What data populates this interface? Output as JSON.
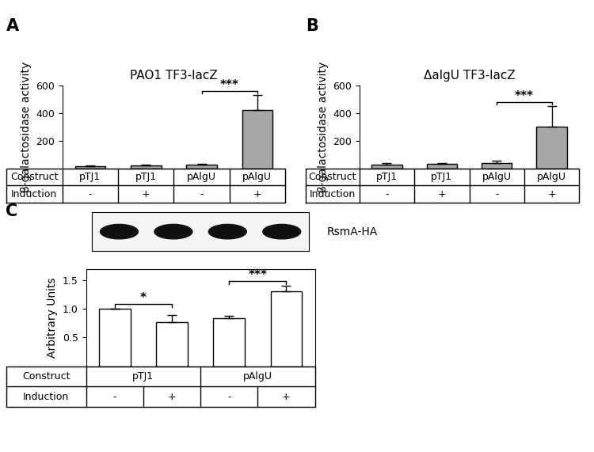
{
  "chart_data": [
    {
      "type": "bar",
      "panel": "A",
      "title": "PAO1 TF3-lacZ",
      "y_label": "β-galactosidase activity",
      "categories": [
        null,
        null,
        null,
        null
      ],
      "values": [
        18,
        25,
        28,
        425
      ],
      "errors": [
        2,
        3,
        6,
        105
      ],
      "color": "#a6a6a6",
      "ylim": [
        0,
        600
      ],
      "yticks": [
        200,
        400,
        600
      ],
      "annotations": [
        {
          "from": 2,
          "to": 3,
          "text": "***"
        }
      ],
      "table": [
        {
          "header": "Construct",
          "cells": [
            "pTJ1",
            "pTJ1",
            "pAlgU",
            "pAlgU"
          ]
        },
        {
          "header": "Induction",
          "cells": [
            "-",
            "+",
            "-",
            "+"
          ]
        }
      ]
    },
    {
      "type": "bar",
      "panel": "B",
      "title": "ΔalgU TF3-lacZ",
      "y_label": "β-galactosidase activity",
      "categories": [
        null,
        null,
        null,
        null
      ],
      "values": [
        30,
        32,
        42,
        300
      ],
      "errors": [
        8,
        8,
        15,
        150
      ],
      "color": "#a6a6a6",
      "ylim": [
        0,
        600
      ],
      "yticks": [
        200,
        400,
        600
      ],
      "annotations": [
        {
          "from": 2,
          "to": 3,
          "text": "***"
        }
      ],
      "table": [
        {
          "header": "Construct",
          "cells": [
            "pTJ1",
            "pTJ1",
            "pAlgU",
            "pAlgU"
          ]
        },
        {
          "header": "Induction",
          "cells": [
            "-",
            "+",
            "-",
            "+"
          ]
        }
      ]
    },
    {
      "type": "bar",
      "panel": "C",
      "blot_label": "RsmA-HA",
      "y_label": "Arbitrary Units",
      "categories": [
        null,
        null,
        null,
        null
      ],
      "values": [
        1.0,
        0.77,
        0.84,
        1.31
      ],
      "errors": [
        0,
        0.13,
        0.04,
        0.09
      ],
      "color": "#ffffff",
      "ylim": [
        0,
        1.7
      ],
      "yticks": [
        0.5,
        1.0,
        1.5
      ],
      "annotations": [
        {
          "from": 0,
          "to": 1,
          "text": "*"
        },
        {
          "from": 2,
          "to": 3,
          "text": "***"
        }
      ],
      "table": [
        {
          "header": "Construct",
          "cells": [
            "pTJ1",
            "pAlgU"
          ]
        },
        {
          "header": "Induction",
          "cells": [
            "-",
            "+",
            "-",
            "+"
          ]
        }
      ]
    }
  ]
}
